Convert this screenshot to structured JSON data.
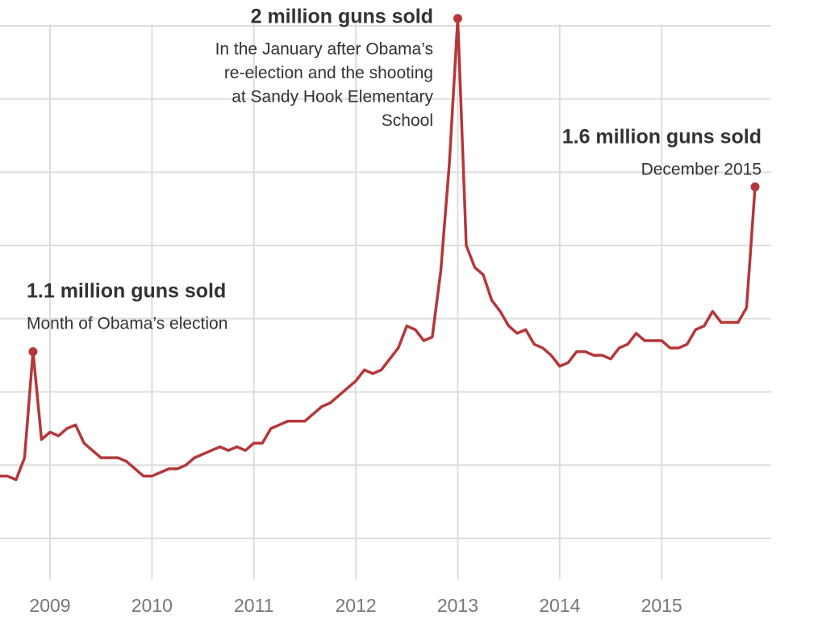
{
  "chart_data": {
    "type": "line",
    "categories": [
      null,
      null,
      null,
      null,
      null,
      null,
      "2009",
      null,
      null,
      null,
      null,
      null,
      null,
      null,
      null,
      null,
      null,
      null,
      "2010",
      null,
      null,
      null,
      null,
      null,
      null,
      null,
      null,
      null,
      null,
      null,
      "2011",
      null,
      null,
      null,
      null,
      null,
      null,
      null,
      null,
      null,
      null,
      null,
      "2012",
      null,
      null,
      null,
      null,
      null,
      null,
      null,
      null,
      null,
      null,
      null,
      "2013",
      null,
      null,
      null,
      null,
      null,
      null,
      null,
      null,
      null,
      null,
      null,
      "2014",
      null,
      null,
      null,
      null,
      null,
      null,
      null,
      null,
      null,
      null,
      null,
      "2015",
      null,
      null,
      null,
      null,
      null,
      null,
      null,
      null,
      null,
      null,
      null
    ],
    "series": [
      {
        "color": "#b5373a",
        "values": [
          0.77,
          0.77,
          0.76,
          0.82,
          1.11,
          0.87,
          0.89,
          0.88,
          0.9,
          0.91,
          0.86,
          0.84,
          0.82,
          0.82,
          0.82,
          0.81,
          0.79,
          0.77,
          0.77,
          0.78,
          0.79,
          0.79,
          0.8,
          0.82,
          0.83,
          0.84,
          0.85,
          0.84,
          0.85,
          0.84,
          0.86,
          0.86,
          0.9,
          0.91,
          0.92,
          0.92,
          0.92,
          0.94,
          0.96,
          0.97,
          0.99,
          1.01,
          1.03,
          1.06,
          1.05,
          1.06,
          1.09,
          1.12,
          1.18,
          1.17,
          1.14,
          1.15,
          1.33,
          1.62,
          2.02,
          1.4,
          1.34,
          1.32,
          1.25,
          1.22,
          1.18,
          1.16,
          1.17,
          1.13,
          1.12,
          1.1,
          1.07,
          1.08,
          1.11,
          1.11,
          1.1,
          1.1,
          1.09,
          1.12,
          1.13,
          1.16,
          1.14,
          1.14,
          1.14,
          1.12,
          1.12,
          1.13,
          1.17,
          1.18,
          1.22,
          1.19,
          1.19,
          1.19,
          1.23,
          1.56
        ]
      }
    ],
    "ylim": [
      0.5,
      2.05
    ],
    "yticks": [
      0.6,
      0.8,
      1.0,
      1.2,
      1.4,
      1.6,
      1.8,
      2.0
    ],
    "grid": true,
    "annotations": [
      {
        "title": "1.1 million guns sold",
        "lines": [
          "Month of Obama’s election"
        ]
      },
      {
        "title": "2 million guns sold",
        "lines": [
          "In the January after Obama’s",
          "re-election and the shooting",
          "at Sandy Hook Elementary",
          "School"
        ]
      },
      {
        "title": "1.6 million guns sold",
        "lines": [
          "December 2015"
        ]
      }
    ]
  }
}
